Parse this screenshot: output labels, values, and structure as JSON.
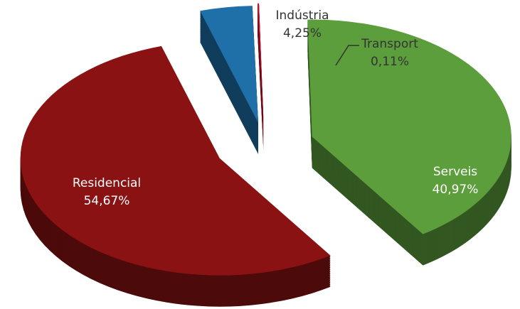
{
  "chart_data": {
    "type": "pie",
    "categories": [
      "Indústria",
      "Transport",
      "Serveis",
      "Residencial"
    ],
    "values": [
      4.25,
      0.11,
      40.97,
      54.67
    ],
    "value_labels": [
      "4,25%",
      "0,11%",
      "40,97%",
      "54,67%"
    ],
    "colors": [
      "#1f6fa8",
      "#c8102e",
      "#5c9e3c",
      "#8a1212"
    ]
  }
}
